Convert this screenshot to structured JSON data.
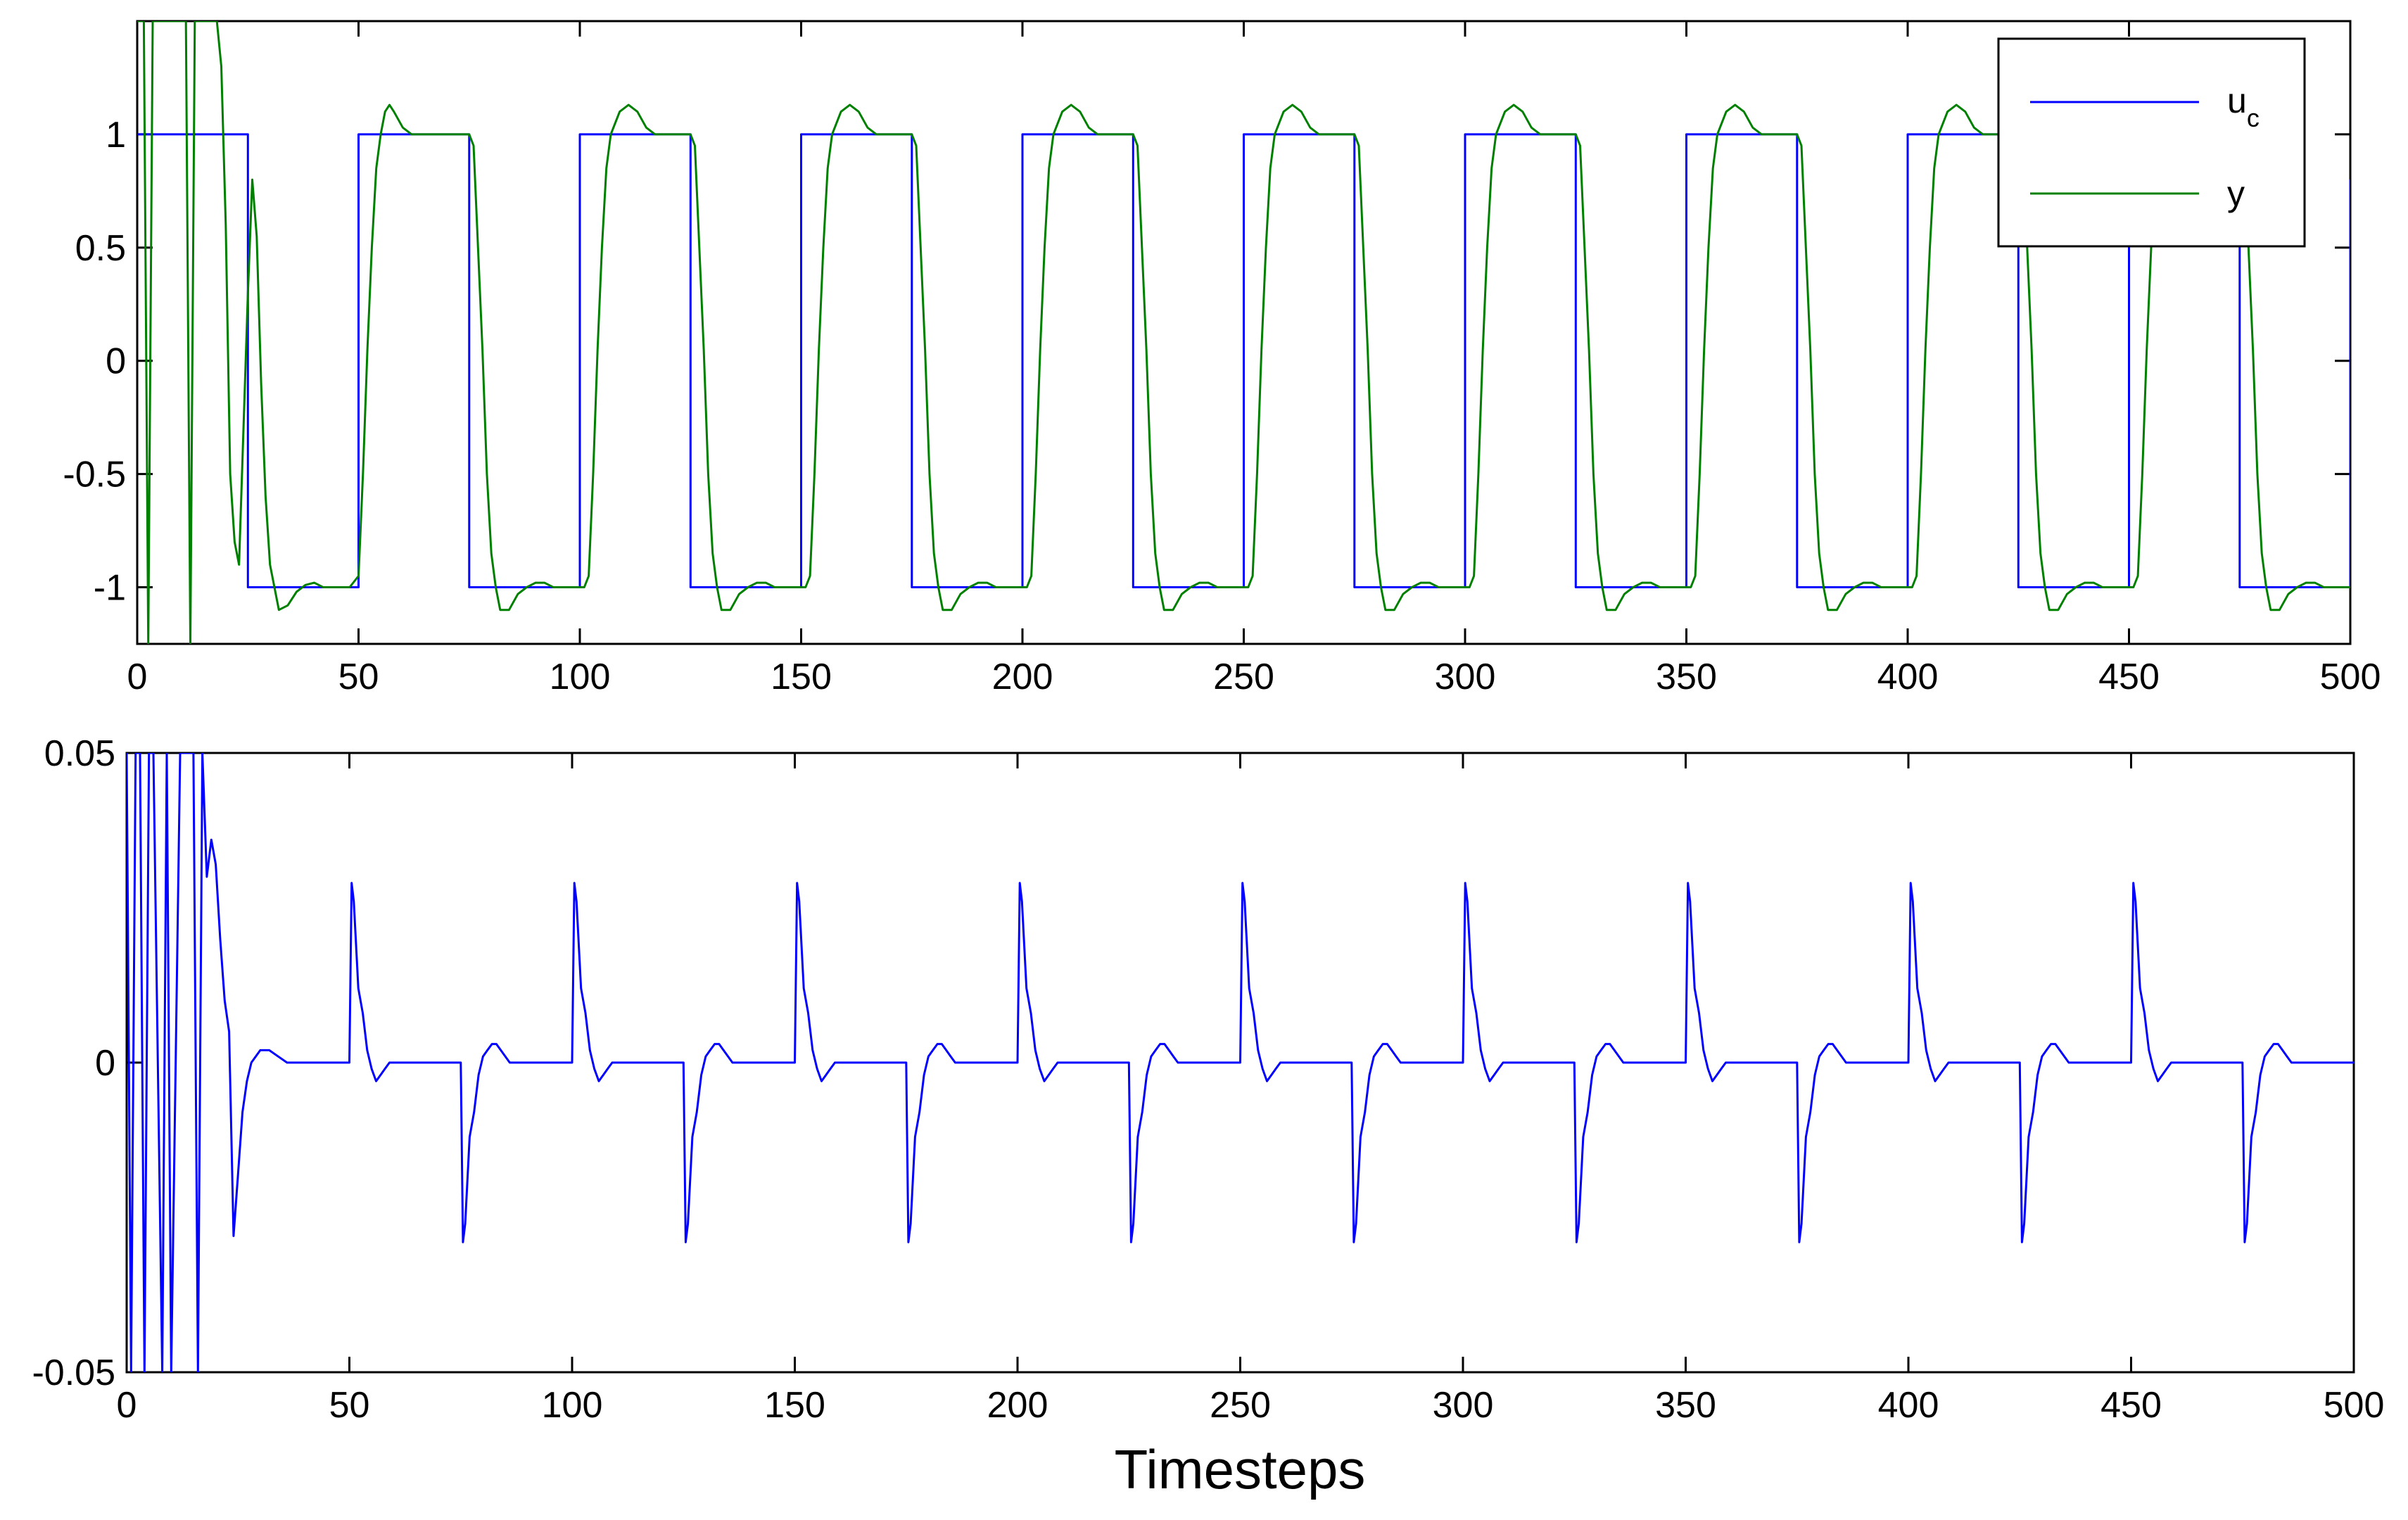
{
  "chart_data": [
    {
      "type": "line",
      "xlim": [
        0,
        500
      ],
      "ylim": [
        -1.25,
        1.5
      ],
      "xticks": [
        0,
        50,
        100,
        150,
        200,
        250,
        300,
        350,
        400,
        450,
        500
      ],
      "yticks": [
        -1,
        -0.5,
        0,
        0.5,
        1
      ],
      "ytick_labels": [
        "-1",
        "-0.5",
        "0",
        "0.5",
        "1"
      ],
      "legend": {
        "position": "top-right",
        "entries": [
          {
            "main": "u",
            "sub": "c"
          },
          {
            "main": "y",
            "sub": ""
          }
        ]
      },
      "series": [
        {
          "name": "u_c",
          "color": "#0000ff",
          "x": [
            0,
            25,
            25,
            50,
            50,
            75,
            75,
            100,
            100,
            125,
            125,
            150,
            150,
            175,
            175,
            200,
            200,
            225,
            225,
            250,
            250,
            275,
            275,
            300,
            300,
            325,
            325,
            350,
            350,
            375,
            375,
            400,
            400,
            425,
            425,
            450,
            450,
            475,
            475,
            500,
            500
          ],
          "y": [
            1,
            1,
            -1,
            -1,
            1,
            1,
            -1,
            -1,
            1,
            1,
            -1,
            -1,
            1,
            1,
            -1,
            -1,
            1,
            1,
            -1,
            -1,
            1,
            1,
            -1,
            -1,
            1,
            1,
            -1,
            -1,
            1,
            1,
            -1,
            -1,
            1,
            1,
            -1,
            -1,
            1,
            1,
            -1,
            -1,
            0.8
          ]
        },
        {
          "name": "y",
          "color": "#008000",
          "x": [
            0,
            0.5,
            1.5,
            2.5,
            3.5,
            5,
            8,
            11,
            12,
            13,
            16,
            18,
            19,
            20,
            21,
            22,
            23,
            24,
            25,
            26,
            27,
            28,
            29,
            30,
            32,
            34,
            36,
            38,
            40,
            42,
            44,
            46,
            48,
            50,
            51,
            52,
            53,
            54,
            55,
            56,
            57,
            58,
            60,
            62,
            64,
            66,
            68,
            70,
            72,
            74,
            75
          ],
          "y": [
            1.5,
            1.5,
            1.5,
            -1.25,
            1.5,
            1.5,
            1.5,
            1.5,
            -1.25,
            1.5,
            1.5,
            1.5,
            1.3,
            0.6,
            -0.5,
            -0.8,
            -0.9,
            -0.3,
            0.3,
            0.8,
            0.55,
            -0.1,
            -0.6,
            -0.9,
            -1.1,
            -1.08,
            -1.02,
            -0.99,
            -0.98,
            -1.0,
            -1.0,
            -1.0,
            -1.0,
            -0.95,
            -0.5,
            0.05,
            0.5,
            0.85,
            1.0,
            1.1,
            1.13,
            1.1,
            1.03,
            1.0,
            1.0,
            1.0,
            1.0,
            1.0,
            1.0,
            1.0,
            1.0
          ],
          "period_after": 75,
          "cycle_x": [
            0,
            1,
            2,
            3,
            4,
            5,
            6,
            7,
            9,
            11,
            13,
            15,
            17,
            19,
            21,
            22,
            23,
            24,
            25,
            26,
            27,
            28,
            29,
            30,
            31,
            32,
            34,
            36,
            38,
            40,
            42,
            44,
            46,
            48,
            50
          ],
          "cycle_y": [
            1.0,
            0.95,
            0.5,
            0.05,
            -0.5,
            -0.85,
            -1.0,
            -1.1,
            -1.1,
            -1.03,
            -1.0,
            -0.98,
            -0.98,
            -1.0,
            -1.0,
            -1.0,
            -1.0,
            -1.0,
            -1.0,
            -1.0,
            -0.95,
            -0.5,
            0.05,
            0.5,
            0.85,
            1.0,
            1.1,
            1.13,
            1.1,
            1.03,
            1.0,
            1.0,
            1.0,
            1.0,
            1.0
          ]
        }
      ]
    },
    {
      "type": "line",
      "xlim": [
        0,
        500
      ],
      "ylim": [
        -0.05,
        0.05
      ],
      "xticks": [
        0,
        50,
        100,
        150,
        200,
        250,
        300,
        350,
        400,
        450,
        500
      ],
      "yticks": [
        -0.05,
        0,
        0.05
      ],
      "ytick_labels": [
        "-0.05",
        "0",
        "0.05"
      ],
      "xlabel": "Timesteps",
      "series": [
        {
          "name": "",
          "color": "#0000ff",
          "x": [
            0,
            1,
            2,
            3,
            4,
            5,
            6,
            8,
            9,
            10,
            12,
            14,
            15,
            16,
            17,
            18,
            19,
            20,
            21,
            22,
            23,
            24,
            25,
            26,
            27,
            28,
            30,
            32,
            34,
            36,
            38,
            40,
            45,
            50
          ],
          "y": [
            0.05,
            -0.05,
            0.05,
            0.05,
            -0.05,
            0.05,
            0.05,
            -0.05,
            0.05,
            -0.05,
            0.05,
            0.05,
            0.05,
            -0.05,
            0.05,
            0.03,
            0.036,
            0.032,
            0.02,
            0.01,
            0.005,
            -0.028,
            -0.018,
            -0.008,
            -0.003,
            0.0,
            0.002,
            0.002,
            0.001,
            0.0,
            0.0,
            0.0,
            0.0,
            0.0
          ],
          "period_after": 50,
          "cycle_x": [
            0,
            0.5,
            1,
            2,
            3,
            4,
            5,
            6,
            7,
            8,
            9,
            10,
            11,
            12,
            13,
            14,
            15,
            16,
            20,
            25,
            25.5,
            26,
            27,
            28,
            29,
            30,
            31,
            32,
            33,
            34,
            35,
            36,
            37,
            38,
            39,
            41,
            50
          ],
          "cycle_y": [
            0.0,
            0.029,
            0.026,
            0.012,
            0.008,
            0.002,
            -0.001,
            -0.003,
            -0.002,
            -0.001,
            0.0,
            0.0,
            0.0,
            0.0,
            0.0,
            0.0,
            0.0,
            0.0,
            0.0,
            0.0,
            -0.029,
            -0.026,
            -0.012,
            -0.008,
            -0.002,
            0.001,
            0.002,
            0.003,
            0.003,
            0.002,
            0.001,
            0.0,
            0.0,
            0.0,
            0.0,
            0.0,
            0.0
          ]
        }
      ]
    }
  ]
}
